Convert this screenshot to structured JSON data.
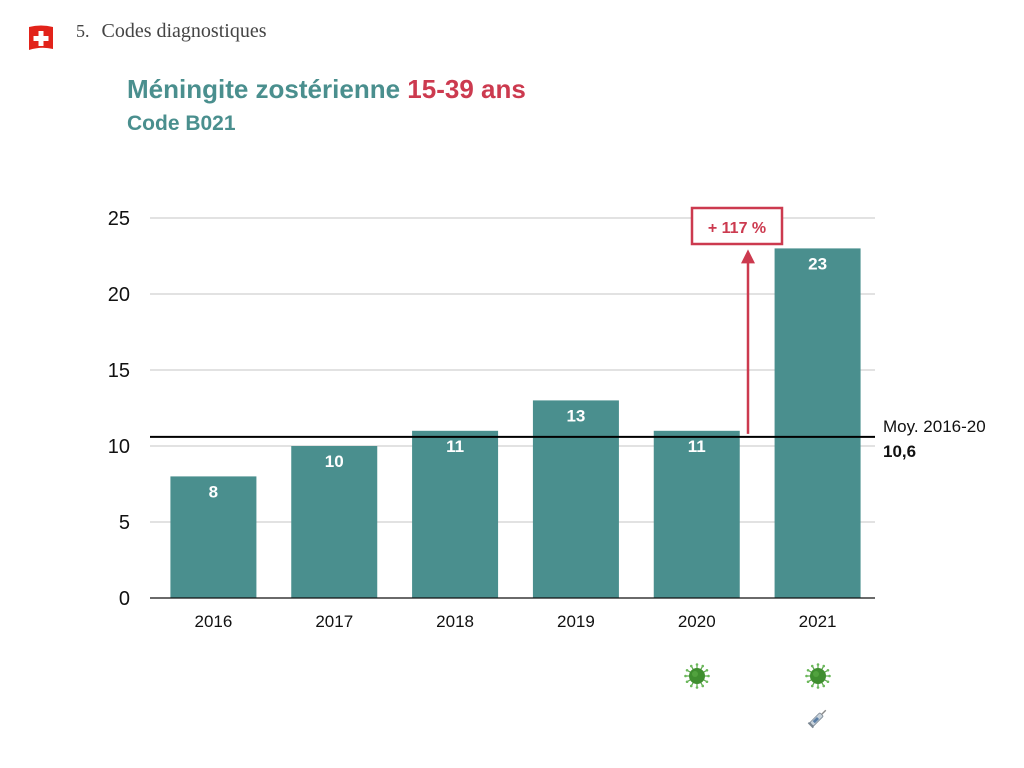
{
  "header": {
    "section_number": "5.",
    "section_title": "Codes diagnostiques",
    "flag_icon": "swiss-flag-icon"
  },
  "title": {
    "main": "Méningite zostérienne",
    "highlight": "15-39 ans",
    "subtitle": "Code B021"
  },
  "colors": {
    "bar": "#4a8f8e",
    "accent_red": "#cc3a4f",
    "title_teal": "#4a8f8e"
  },
  "chart_data": {
    "type": "bar",
    "title": "Méningite zostérienne 15-39 ans",
    "subtitle": "Code B021",
    "categories": [
      "2016",
      "2017",
      "2018",
      "2019",
      "2020",
      "2021"
    ],
    "values": [
      8,
      10,
      11,
      13,
      11,
      23
    ],
    "data_labels": [
      "8",
      "10",
      "11",
      "13",
      "11",
      "23"
    ],
    "xlabel": "",
    "ylabel": "",
    "ylim": [
      0,
      25
    ],
    "yticks": [
      0,
      5,
      10,
      15,
      20,
      25
    ],
    "ytick_labels": [
      "0",
      "5",
      "10",
      "15",
      "20",
      "25"
    ],
    "grid": true,
    "reference_line": {
      "value": 10.6,
      "label": "Moy. 2016-20",
      "value_label": "10,6"
    },
    "annotation": {
      "text": "+ 117 %",
      "from_value": 10.6,
      "to_category": "2021"
    },
    "category_icons": {
      "2020": [
        "virus-icon"
      ],
      "2021": [
        "virus-icon",
        "syringe-icon"
      ]
    }
  }
}
